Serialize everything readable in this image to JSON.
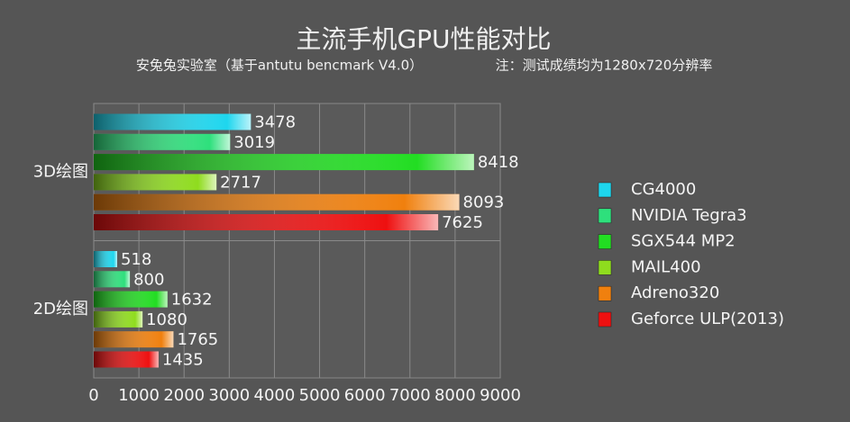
{
  "chart_data": {
    "type": "bar",
    "orientation": "horizontal",
    "title": "主流手机GPU性能对比",
    "subtitle": "安兔兔实验室（基于antutu bencmark V4.0）",
    "note": "注：测试成绩均为1280x720分辨率",
    "categories": [
      "3D绘图",
      "2D绘图"
    ],
    "series": [
      {
        "name": "CG4000",
        "color": "#1ed6ee",
        "values": [
          3478,
          518
        ]
      },
      {
        "name": "NVIDIA Tegra3",
        "color": "#2ee07c",
        "values": [
          3019,
          800
        ]
      },
      {
        "name": "SGX544 MP2",
        "color": "#22dd22",
        "values": [
          8418,
          1632
        ]
      },
      {
        "name": "MAIL400",
        "color": "#8fdc1e",
        "values": [
          2717,
          1080
        ]
      },
      {
        "name": "Adreno320",
        "color": "#f0800e",
        "values": [
          8093,
          1765
        ]
      },
      {
        "name": "Geforce ULP(2013)",
        "color": "#ee1010",
        "values": [
          7625,
          1435
        ]
      }
    ],
    "xlim": [
      0,
      9000
    ],
    "xticks": [
      0,
      1000,
      2000,
      3000,
      4000,
      5000,
      6000,
      7000,
      8000,
      9000
    ],
    "grid": true,
    "legend": "right"
  }
}
